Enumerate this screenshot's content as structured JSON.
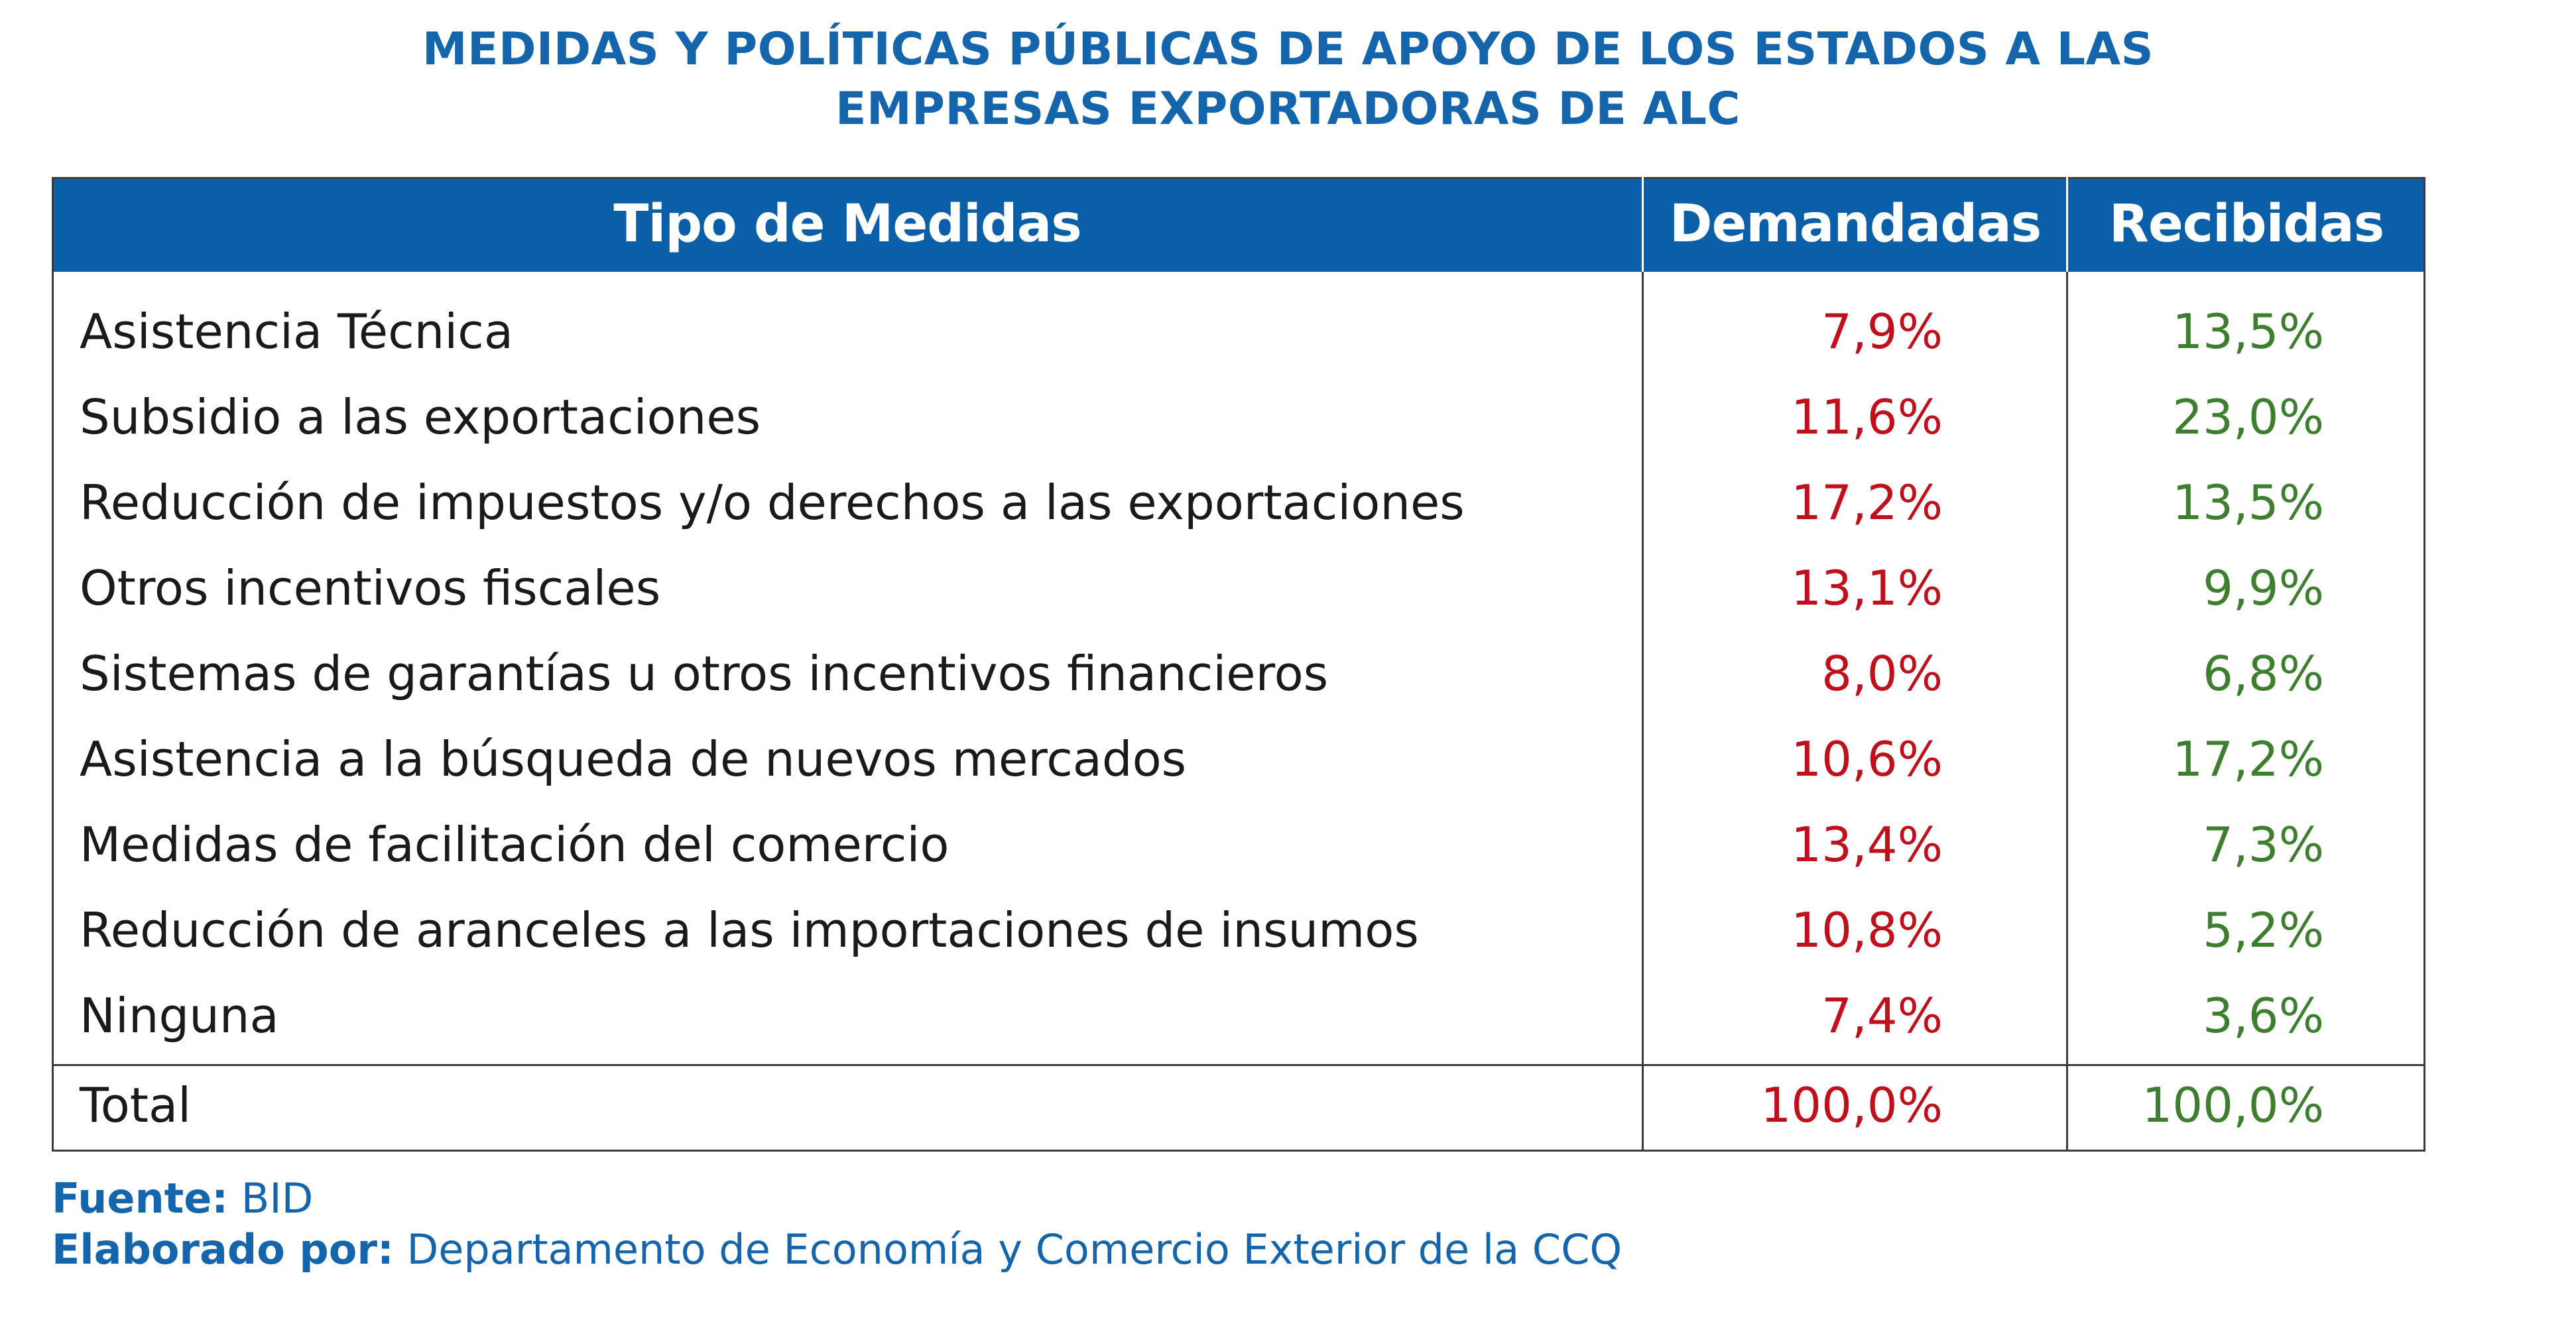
{
  "title": {
    "line1": "MEDIDAS Y POLÍTICAS PÚBLICAS DE APOYO DE LOS ESTADOS A LAS",
    "line2": "EMPRESAS EXPORTADORAS DE ALC"
  },
  "colors": {
    "header_bg": "#0a5fa8",
    "title": "#1565ad",
    "demandadas": "#c0101c",
    "recibidas": "#3d7f2e"
  },
  "chart_data": {
    "type": "table",
    "columns": [
      "Tipo de Medidas",
      "Demandadas",
      "Recibidas"
    ],
    "rows": [
      {
        "label": "Asistencia Técnica",
        "demandadas": "7,9%",
        "recibidas": "13,5%"
      },
      {
        "label": "Subsidio a las exportaciones",
        "demandadas": "11,6%",
        "recibidas": "23,0%"
      },
      {
        "label": "Reducción de impuestos y/o derechos a las exportaciones",
        "demandadas": "17,2%",
        "recibidas": "13,5%"
      },
      {
        "label": "Otros incentivos fiscales",
        "demandadas": "13,1%",
        "recibidas": "9,9%"
      },
      {
        "label": "Sistemas de garantías u otros incentivos financieros",
        "demandadas": "8,0%",
        "recibidas": "6,8%"
      },
      {
        "label": "Asistencia a la búsqueda de nuevos mercados",
        "demandadas": "10,6%",
        "recibidas": "17,2%"
      },
      {
        "label": "Medidas de facilitación del comercio",
        "demandadas": "13,4%",
        "recibidas": "7,3%"
      },
      {
        "label": "Reducción de aranceles a las importaciones de insumos",
        "demandadas": "10,8%",
        "recibidas": "5,2%"
      },
      {
        "label": "Ninguna",
        "demandadas": "7,4%",
        "recibidas": "3,6%"
      }
    ],
    "total": {
      "label": "Total",
      "demandadas": "100,0%",
      "recibidas": "100,0%"
    }
  },
  "footer": {
    "source_label": "Fuente:",
    "source_value": "BID",
    "author_label": "Elaborado por:",
    "author_value": "Departamento de Economía y Comercio Exterior de la CCQ"
  }
}
